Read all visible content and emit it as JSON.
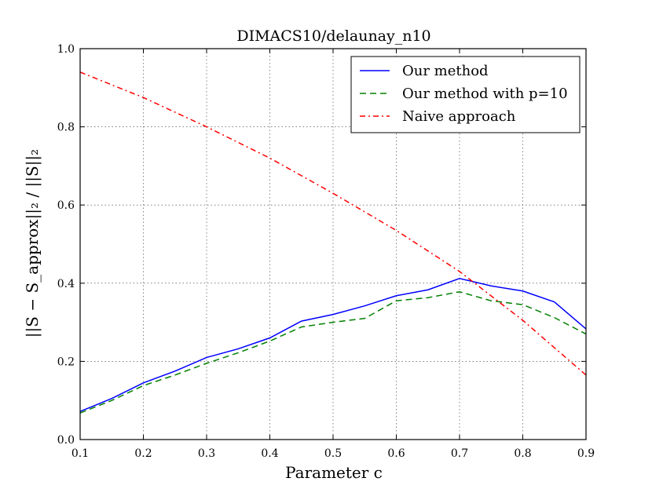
{
  "chart_data": {
    "type": "line",
    "title": "DIMACS10/delaunay_n10",
    "xlabel": "Parameter c",
    "ylabel": "||S − S_approx||₂ / ||S||₂",
    "xlim": [
      0.1,
      0.9
    ],
    "ylim": [
      0.0,
      1.0
    ],
    "xticks": [
      "0.1",
      "0.2",
      "0.3",
      "0.4",
      "0.5",
      "0.6",
      "0.7",
      "0.8",
      "0.9"
    ],
    "yticks": [
      "0.0",
      "0.2",
      "0.4",
      "0.6",
      "0.8",
      "1.0"
    ],
    "grid": true,
    "legend_position": "top-right",
    "series": [
      {
        "name": "Our method",
        "color": "#0000ff",
        "style": "solid",
        "x": [
          0.1,
          0.15,
          0.2,
          0.25,
          0.3,
          0.35,
          0.4,
          0.45,
          0.5,
          0.55,
          0.6,
          0.65,
          0.7,
          0.75,
          0.8,
          0.85,
          0.9
        ],
        "y": [
          0.072,
          0.105,
          0.145,
          0.175,
          0.21,
          0.232,
          0.26,
          0.303,
          0.32,
          0.342,
          0.368,
          0.383,
          0.412,
          0.393,
          0.38,
          0.352,
          0.283
        ]
      },
      {
        "name": "Our method with p=10",
        "color": "#008000",
        "style": "dashed",
        "x": [
          0.1,
          0.15,
          0.2,
          0.25,
          0.3,
          0.35,
          0.4,
          0.45,
          0.5,
          0.55,
          0.6,
          0.65,
          0.7,
          0.75,
          0.8,
          0.85,
          0.9
        ],
        "y": [
          0.068,
          0.1,
          0.138,
          0.165,
          0.195,
          0.222,
          0.252,
          0.288,
          0.3,
          0.31,
          0.355,
          0.363,
          0.378,
          0.355,
          0.345,
          0.312,
          0.27
        ]
      },
      {
        "name": "Naive approach",
        "color": "#ff0000",
        "style": "dashdot",
        "x": [
          0.1,
          0.2,
          0.3,
          0.4,
          0.5,
          0.6,
          0.7,
          0.8,
          0.9
        ],
        "y": [
          0.94,
          0.875,
          0.8,
          0.72,
          0.63,
          0.535,
          0.43,
          0.305,
          0.165
        ]
      }
    ]
  }
}
